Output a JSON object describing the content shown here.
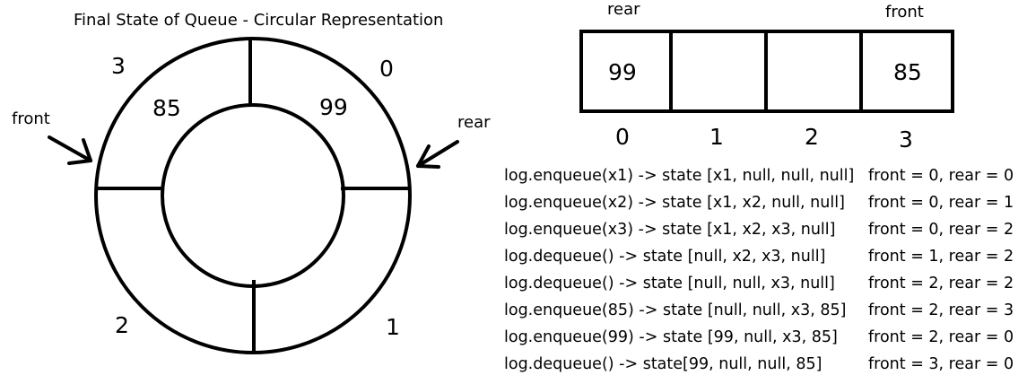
{
  "title": "Final State of Queue - Circular Representation",
  "circular": {
    "slots": [
      {
        "index": "0",
        "value": "99"
      },
      {
        "index": "1",
        "value": ""
      },
      {
        "index": "2",
        "value": ""
      },
      {
        "index": "3",
        "value": "85"
      }
    ],
    "front_label": "front",
    "rear_label": "rear"
  },
  "array": {
    "rear_label": "rear",
    "front_label": "front",
    "cells": [
      {
        "index": "0",
        "value": "99"
      },
      {
        "index": "1",
        "value": ""
      },
      {
        "index": "2",
        "value": ""
      },
      {
        "index": "3",
        "value": "85"
      }
    ]
  },
  "log": [
    {
      "op": "log.enqueue(x1) -> state [x1, null, null, null]",
      "pointers": "front = 0, rear = 0"
    },
    {
      "op": "log.enqueue(x2) -> state [x1, x2, null, null]",
      "pointers": "front = 0, rear = 1"
    },
    {
      "op": "log.enqueue(x3) -> state [x1, x2, x3, null]",
      "pointers": "front = 0, rear = 2"
    },
    {
      "op": "log.dequeue() -> state [null, x2, x3, null]",
      "pointers": "front = 1, rear = 2"
    },
    {
      "op": "log.dequeue() -> state [null, null, x3, null]",
      "pointers": "front = 2, rear = 2"
    },
    {
      "op": "log.enqueue(85) -> state [null, null, x3, 85]",
      "pointers": "front = 2, rear = 3"
    },
    {
      "op": "log.enqueue(99) -> state [99, null, x3, 85]",
      "pointers": "front = 2, rear = 0"
    },
    {
      "op": "log.dequeue() -> state[99, null, null, 85]",
      "pointers": "front = 3, rear = 0"
    }
  ]
}
